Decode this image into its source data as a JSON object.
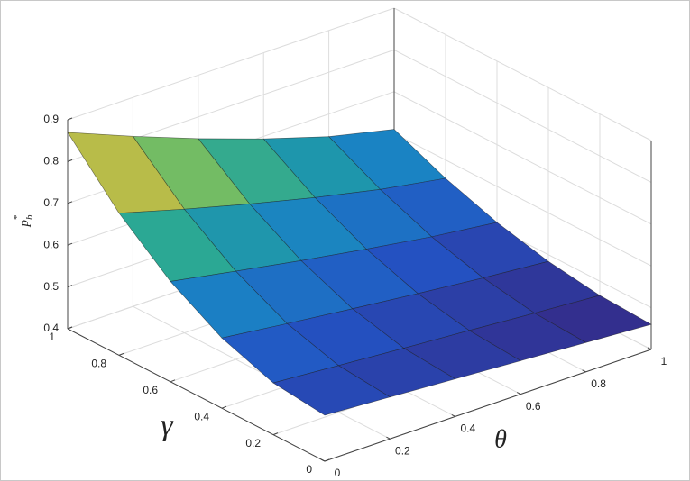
{
  "chart_data": {
    "type": "surface",
    "xlabel": "θ",
    "ylabel": "γ",
    "zlabel": {
      "text": "p",
      "sub": "b",
      "sup": "*"
    },
    "x": [
      0,
      0.2,
      0.4,
      0.6,
      0.8,
      1
    ],
    "y": [
      0,
      0.2,
      0.4,
      0.6,
      0.8,
      1
    ],
    "z": [
      [
        0.51,
        0.5,
        0.49,
        0.48,
        0.47,
        0.46
      ],
      [
        0.524,
        0.512,
        0.5,
        0.489,
        0.477,
        0.466
      ],
      [
        0.568,
        0.549,
        0.531,
        0.514,
        0.498,
        0.484
      ],
      [
        0.64,
        0.611,
        0.583,
        0.557,
        0.533,
        0.514
      ],
      [
        0.74,
        0.696,
        0.655,
        0.617,
        0.583,
        0.556
      ],
      [
        0.87,
        0.807,
        0.748,
        0.694,
        0.646,
        0.61
      ]
    ],
    "xlim": [
      0,
      1
    ],
    "ylim": [
      0,
      1
    ],
    "zlim": [
      0.4,
      0.9
    ],
    "xticks": [
      0,
      0.2,
      0.4,
      0.6,
      0.8,
      1
    ],
    "yticks": [
      0,
      0.2,
      0.4,
      0.6,
      0.8,
      1
    ],
    "zticks": [
      0.4,
      0.5,
      0.6,
      0.7,
      0.8,
      0.9
    ],
    "grid": true,
    "colormap": [
      "#352a87",
      "#2353c4",
      "#1a82c4",
      "#22a59a",
      "#7cbf5e",
      "#d8ba3e",
      "#f9d523"
    ]
  }
}
